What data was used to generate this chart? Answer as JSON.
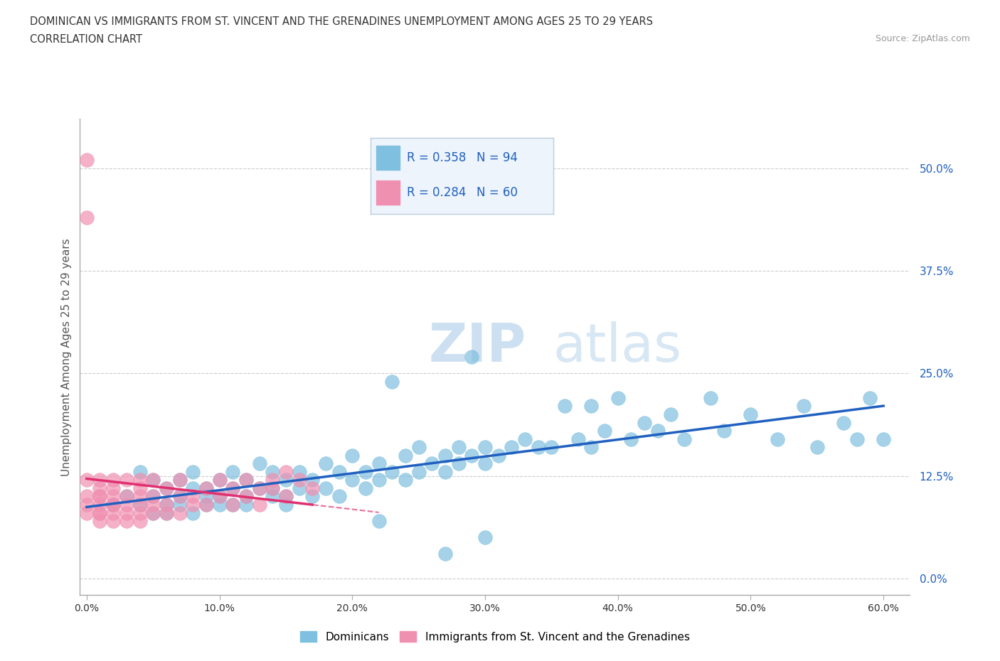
{
  "title_line1": "DOMINICAN VS IMMIGRANTS FROM ST. VINCENT AND THE GRENADINES UNEMPLOYMENT AMONG AGES 25 TO 29 YEARS",
  "title_line2": "CORRELATION CHART",
  "source_text": "Source: ZipAtlas.com",
  "ylabel": "Unemployment Among Ages 25 to 29 years",
  "xlim": [
    -0.005,
    0.62
  ],
  "ylim": [
    -0.02,
    0.56
  ],
  "xticks": [
    0.0,
    0.1,
    0.2,
    0.3,
    0.4,
    0.5,
    0.6
  ],
  "xticklabels": [
    "0.0%",
    "10.0%",
    "20.0%",
    "30.0%",
    "40.0%",
    "50.0%",
    "60.0%"
  ],
  "yticks_right": [
    0.0,
    0.125,
    0.25,
    0.375,
    0.5
  ],
  "yticklabels_right": [
    "0.0%",
    "12.5%",
    "25.0%",
    "37.5%",
    "50.0%"
  ],
  "blue_color": "#7fbfdf",
  "pink_color": "#f090b0",
  "blue_line_color": "#2060c0",
  "pink_line_color": "#e03070",
  "R_blue": 0.358,
  "N_blue": 94,
  "R_pink": 0.284,
  "N_pink": 60,
  "legend_text_color": "#2060c0",
  "watermark_zip": "ZIP",
  "watermark_atlas": "atlas",
  "blue_scatter_x": [
    0.02,
    0.03,
    0.04,
    0.04,
    0.05,
    0.05,
    0.05,
    0.06,
    0.06,
    0.06,
    0.07,
    0.07,
    0.07,
    0.08,
    0.08,
    0.08,
    0.09,
    0.09,
    0.09,
    0.1,
    0.1,
    0.1,
    0.11,
    0.11,
    0.11,
    0.12,
    0.12,
    0.12,
    0.13,
    0.13,
    0.14,
    0.14,
    0.14,
    0.15,
    0.15,
    0.15,
    0.16,
    0.16,
    0.17,
    0.17,
    0.18,
    0.18,
    0.19,
    0.19,
    0.2,
    0.2,
    0.21,
    0.21,
    0.22,
    0.22,
    0.23,
    0.23,
    0.24,
    0.24,
    0.25,
    0.25,
    0.26,
    0.27,
    0.27,
    0.28,
    0.28,
    0.29,
    0.3,
    0.3,
    0.31,
    0.32,
    0.33,
    0.34,
    0.35,
    0.36,
    0.37,
    0.38,
    0.39,
    0.4,
    0.41,
    0.42,
    0.43,
    0.44,
    0.45,
    0.47,
    0.48,
    0.5,
    0.52,
    0.54,
    0.55,
    0.57,
    0.58,
    0.59,
    0.6,
    0.22,
    0.27,
    0.29,
    0.38,
    0.3
  ],
  "blue_scatter_y": [
    0.09,
    0.1,
    0.09,
    0.13,
    0.08,
    0.1,
    0.12,
    0.09,
    0.11,
    0.08,
    0.1,
    0.12,
    0.09,
    0.11,
    0.08,
    0.13,
    0.1,
    0.09,
    0.11,
    0.12,
    0.1,
    0.09,
    0.13,
    0.11,
    0.09,
    0.09,
    0.12,
    0.1,
    0.11,
    0.14,
    0.1,
    0.13,
    0.11,
    0.12,
    0.1,
    0.09,
    0.13,
    0.11,
    0.12,
    0.1,
    0.14,
    0.11,
    0.13,
    0.1,
    0.12,
    0.15,
    0.11,
    0.13,
    0.12,
    0.14,
    0.24,
    0.13,
    0.12,
    0.15,
    0.13,
    0.16,
    0.14,
    0.15,
    0.13,
    0.14,
    0.16,
    0.15,
    0.14,
    0.16,
    0.15,
    0.16,
    0.17,
    0.16,
    0.16,
    0.21,
    0.17,
    0.16,
    0.18,
    0.22,
    0.17,
    0.19,
    0.18,
    0.2,
    0.17,
    0.22,
    0.18,
    0.2,
    0.17,
    0.21,
    0.16,
    0.19,
    0.17,
    0.22,
    0.17,
    0.07,
    0.03,
    0.27,
    0.21,
    0.05
  ],
  "pink_scatter_x": [
    0.0,
    0.0,
    0.0,
    0.0,
    0.0,
    0.0,
    0.01,
    0.01,
    0.01,
    0.01,
    0.01,
    0.01,
    0.01,
    0.01,
    0.02,
    0.02,
    0.02,
    0.02,
    0.02,
    0.02,
    0.02,
    0.03,
    0.03,
    0.03,
    0.03,
    0.03,
    0.04,
    0.04,
    0.04,
    0.04,
    0.04,
    0.04,
    0.05,
    0.05,
    0.05,
    0.05,
    0.06,
    0.06,
    0.06,
    0.07,
    0.07,
    0.07,
    0.08,
    0.08,
    0.09,
    0.09,
    0.1,
    0.1,
    0.11,
    0.11,
    0.12,
    0.12,
    0.13,
    0.13,
    0.14,
    0.14,
    0.15,
    0.15,
    0.16,
    0.17
  ],
  "pink_scatter_y": [
    0.51,
    0.44,
    0.12,
    0.09,
    0.08,
    0.1,
    0.1,
    0.08,
    0.12,
    0.09,
    0.07,
    0.11,
    0.08,
    0.1,
    0.09,
    0.11,
    0.08,
    0.12,
    0.1,
    0.07,
    0.09,
    0.1,
    0.08,
    0.12,
    0.09,
    0.07,
    0.1,
    0.08,
    0.12,
    0.09,
    0.11,
    0.07,
    0.1,
    0.08,
    0.12,
    0.09,
    0.09,
    0.11,
    0.08,
    0.1,
    0.08,
    0.12,
    0.1,
    0.09,
    0.11,
    0.09,
    0.1,
    0.12,
    0.09,
    0.11,
    0.1,
    0.12,
    0.11,
    0.09,
    0.12,
    0.11,
    0.1,
    0.13,
    0.12,
    0.11
  ]
}
